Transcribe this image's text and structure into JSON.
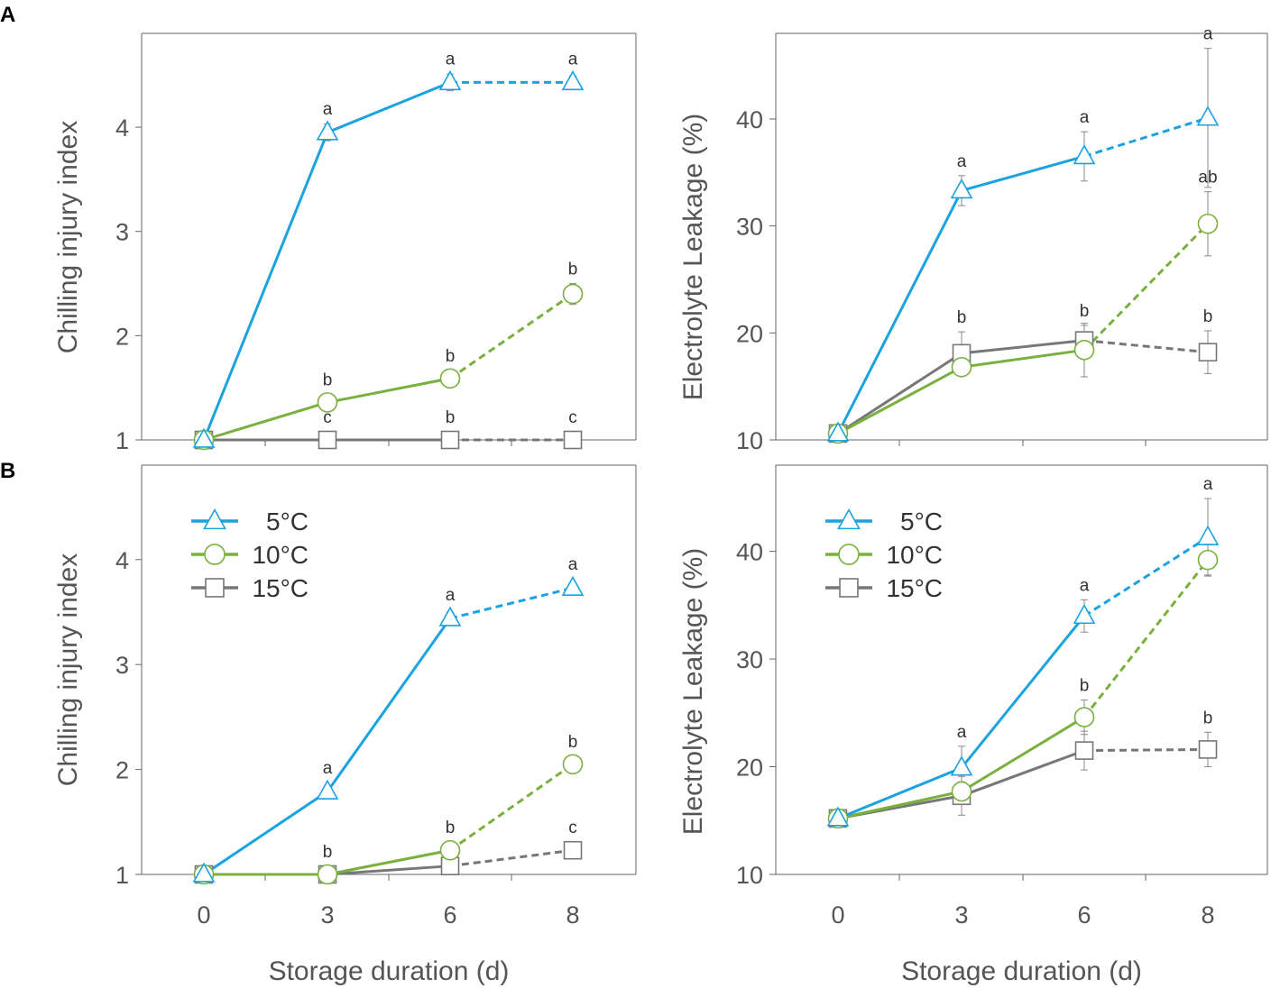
{
  "colors": {
    "5C": "#1aa3e0",
    "10C": "#79b03e",
    "15C": "#777777",
    "frame": "#666666",
    "text": "#555555"
  },
  "legend": [
    {
      "key": "5C",
      "label": "5°C",
      "marker": "triangle"
    },
    {
      "key": "10C",
      "label": "10°C",
      "marker": "circle"
    },
    {
      "key": "15C",
      "label": "15°C",
      "marker": "square"
    }
  ],
  "chart_data": [
    {
      "panel": "A",
      "type": "line",
      "xlabel": "",
      "ylabel": "Chilling injury index",
      "x": [
        0,
        3,
        6,
        8
      ],
      "ylim": [
        1,
        4.9
      ],
      "yticks": [
        1,
        2,
        3,
        4
      ],
      "legend": false,
      "series": [
        {
          "name": "5°C",
          "key": "5C",
          "marker": "triangle",
          "values": [
            1,
            3.95,
            4.43,
            4.43
          ],
          "err": [
            0,
            0.08,
            0.08,
            0.06
          ],
          "labels": [
            "",
            "a",
            "a",
            "a"
          ],
          "dashed_from": 2
        },
        {
          "name": "10°C",
          "key": "10C",
          "marker": "circle",
          "values": [
            1,
            1.36,
            1.59,
            2.4
          ],
          "err": [
            0,
            0.05,
            0.05,
            0.1
          ],
          "labels": [
            "",
            "b",
            "b",
            "b"
          ],
          "dashed_from": 2
        },
        {
          "name": "15°C",
          "key": "15C",
          "marker": "square",
          "values": [
            1,
            1,
            1,
            1
          ],
          "err": [
            0,
            0,
            0,
            0
          ],
          "labels": [
            "",
            "c",
            "b",
            "c"
          ],
          "dashed_from": 2
        }
      ]
    },
    {
      "panel": "",
      "type": "line",
      "xlabel": "",
      "ylabel": "Electrolyte Leakage (%)",
      "x": [
        0,
        3,
        6,
        8
      ],
      "ylim": [
        10,
        48
      ],
      "yticks": [
        10,
        20,
        30,
        40
      ],
      "legend": false,
      "series": [
        {
          "name": "5°C",
          "key": "5C",
          "marker": "triangle",
          "values": [
            10.6,
            33.3,
            36.5,
            40.1
          ],
          "err": [
            0,
            1.4,
            2.3,
            6.5
          ],
          "labels": [
            "",
            "a",
            "a",
            "a"
          ],
          "dashed_from": 2
        },
        {
          "name": "10°C",
          "key": "10C",
          "marker": "circle",
          "values": [
            10.6,
            16.8,
            18.4,
            30.2
          ],
          "err": [
            0,
            0.8,
            2.5,
            3
          ],
          "labels": [
            "",
            "",
            "",
            "ab"
          ],
          "dashed_from": 2
        },
        {
          "name": "15°C",
          "key": "15C",
          "marker": "square",
          "values": [
            10.6,
            18.1,
            19.3,
            18.2
          ],
          "err": [
            0,
            2,
            1.4,
            2
          ],
          "labels": [
            "",
            "b",
            "b",
            "b"
          ],
          "dashed_from": 2
        }
      ]
    },
    {
      "panel": "B",
      "type": "line",
      "xlabel": "Storage duration (d)",
      "ylabel": "Chilling injury index",
      "x": [
        0,
        3,
        6,
        8
      ],
      "ylim": [
        1,
        4.9
      ],
      "yticks": [
        1,
        2,
        3,
        4
      ],
      "legend": true,
      "series": [
        {
          "name": "5°C",
          "key": "5C",
          "marker": "triangle",
          "values": [
            1,
            1.79,
            3.44,
            3.73
          ],
          "err": [
            0,
            0.05,
            0.06,
            0.05
          ],
          "labels": [
            "",
            "a",
            "a",
            "a"
          ],
          "dashed_from": 2
        },
        {
          "name": "10°C",
          "key": "10C",
          "marker": "circle",
          "values": [
            1,
            1,
            1.23,
            2.05
          ],
          "err": [
            0,
            0,
            0.05,
            0.05
          ],
          "labels": [
            "",
            "b",
            "b",
            "b"
          ],
          "dashed_from": 2
        },
        {
          "name": "15°C",
          "key": "15C",
          "marker": "square",
          "values": [
            1,
            1,
            1.08,
            1.23
          ],
          "err": [
            0,
            0,
            0,
            0
          ],
          "labels": [
            "",
            "",
            "",
            "c"
          ],
          "dashed_from": 2
        }
      ]
    },
    {
      "panel": "",
      "type": "line",
      "xlabel": "Storage duration (d)",
      "ylabel": "Electrolyte Leakage (%)",
      "x": [
        0,
        3,
        6,
        8
      ],
      "ylim": [
        10,
        48
      ],
      "yticks": [
        10,
        20,
        30,
        40
      ],
      "legend": true,
      "series": [
        {
          "name": "5°C",
          "key": "5C",
          "marker": "triangle",
          "values": [
            15.2,
            19.9,
            34,
            41.3
          ],
          "err": [
            0,
            2,
            1.5,
            3.6
          ],
          "labels": [
            "",
            "a",
            "a",
            "a"
          ],
          "dashed_from": 2
        },
        {
          "name": "10°C",
          "key": "10C",
          "marker": "circle",
          "values": [
            15.2,
            17.7,
            24.6,
            39.2
          ],
          "err": [
            0,
            0.9,
            1.6,
            1.4
          ],
          "labels": [
            "",
            "",
            "b",
            ""
          ],
          "dashed_from": 2
        },
        {
          "name": "15°C",
          "key": "15C",
          "marker": "square",
          "values": [
            15.2,
            17.3,
            21.5,
            21.6
          ],
          "err": [
            0,
            1.8,
            1.8,
            1.6
          ],
          "labels": [
            "",
            "",
            "",
            "b"
          ],
          "dashed_from": 2
        }
      ]
    }
  ]
}
